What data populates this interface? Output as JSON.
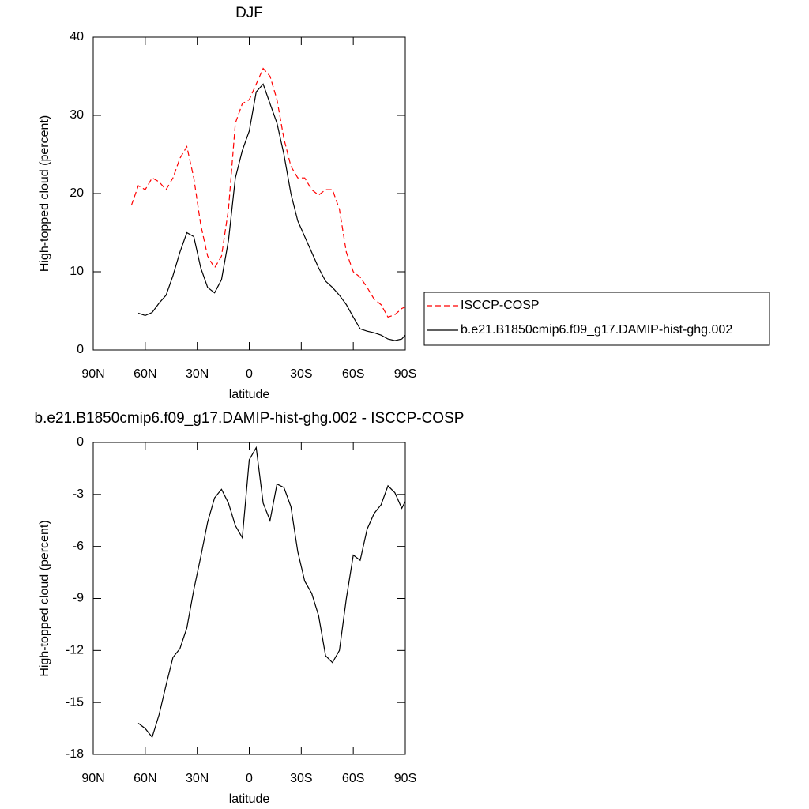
{
  "chart_data": [
    {
      "type": "line",
      "title": "DJF",
      "xlabel": "latitude",
      "ylabel": "High-topped cloud (percent)",
      "x": [
        68,
        64,
        60,
        56,
        52,
        48,
        44,
        40,
        36,
        32,
        28,
        24,
        20,
        16,
        12,
        8,
        4,
        0,
        -4,
        -8,
        -12,
        -16,
        -20,
        -24,
        -28,
        -32,
        -36,
        -40,
        -44,
        -48,
        -52,
        -56,
        -60,
        -64,
        -68,
        -72,
        -76,
        -80,
        -84,
        -88,
        -90
      ],
      "xlim": [
        90,
        -90
      ],
      "xticks": [
        {
          "value": 90,
          "label": "90N"
        },
        {
          "value": 60,
          "label": "60N"
        },
        {
          "value": 30,
          "label": "30N"
        },
        0,
        {
          "value": -30,
          "label": "30S"
        },
        {
          "value": -60,
          "label": "60S"
        },
        {
          "value": -90,
          "label": "90S"
        }
      ],
      "ylim": [
        0,
        40
      ],
      "yticks": [
        0,
        10,
        20,
        30,
        40
      ],
      "legend": "right",
      "series": [
        {
          "name": "ISCCP-COSP",
          "color": "#ff0000",
          "dash": true,
          "values": [
            18.5,
            21,
            20.5,
            22,
            21.5,
            20.5,
            22,
            24.5,
            26,
            22,
            16,
            12,
            10.5,
            12,
            18,
            29,
            31.5,
            32,
            34,
            36,
            35,
            32,
            27,
            23.5,
            22,
            22,
            20.5,
            19.8,
            20.5,
            20.5,
            18,
            12.5,
            10,
            9.3,
            8,
            6.5,
            5.8,
            4.2,
            4.5,
            5.3,
            5.5
          ]
        },
        {
          "name": "b.e21.B1850cmip6.f09_g17.DAMIP-hist-ghg.002",
          "color": "#000000",
          "dash": false,
          "values": [
            null,
            4.7,
            4.4,
            4.8,
            6,
            7,
            9.5,
            12.5,
            15,
            14.5,
            10.5,
            8,
            7.3,
            9,
            14,
            22,
            25.5,
            28,
            33,
            34,
            31.5,
            29,
            25,
            20,
            16.5,
            14.5,
            12.5,
            10.5,
            8.8,
            8,
            7,
            5.8,
            4.2,
            2.7,
            2.4,
            2.2,
            1.9,
            1.4,
            1.2,
            1.4,
            1.9
          ]
        }
      ]
    },
    {
      "type": "line",
      "title": "b.e21.B1850cmip6.f09_g17.DAMIP-hist-ghg.002 - ISCCP-COSP",
      "xlabel": "latitude",
      "ylabel": "High-topped cloud (percent)",
      "x": [
        68,
        64,
        60,
        56,
        52,
        48,
        44,
        40,
        36,
        32,
        28,
        24,
        20,
        16,
        12,
        8,
        4,
        0,
        -4,
        -8,
        -12,
        -16,
        -20,
        -24,
        -28,
        -32,
        -36,
        -40,
        -44,
        -48,
        -52,
        -56,
        -60,
        -64,
        -68,
        -72,
        -76,
        -80,
        -84,
        -88,
        -90
      ],
      "xlim": [
        90,
        -90
      ],
      "xticks": [
        {
          "value": 90,
          "label": "90N"
        },
        {
          "value": 60,
          "label": "60N"
        },
        {
          "value": 30,
          "label": "30N"
        },
        0,
        {
          "value": -30,
          "label": "30S"
        },
        {
          "value": -60,
          "label": "60S"
        },
        {
          "value": -90,
          "label": "90S"
        }
      ],
      "ylim": [
        -18,
        0
      ],
      "yticks": [
        0,
        -3,
        -6,
        -9,
        -12,
        -15,
        -18
      ],
      "series": [
        {
          "color": "#000000",
          "values": [
            null,
            -16.2,
            -16.5,
            -17,
            -15.7,
            -14,
            -12.4,
            -11.9,
            -10.7,
            -8.5,
            -6.6,
            -4.6,
            -3.2,
            -2.7,
            -3.5,
            -4.8,
            -5.5,
            -1,
            -0.3,
            -3.5,
            -4.5,
            -2.4,
            -2.6,
            -3.7,
            -6.3,
            -8,
            -8.7,
            -10,
            -12.3,
            -12.7,
            -12,
            -9,
            -6.5,
            -6.8,
            -5,
            -4.1,
            -3.6,
            -2.5,
            -2.9,
            -3.8,
            -3.4
          ]
        }
      ]
    }
  ]
}
